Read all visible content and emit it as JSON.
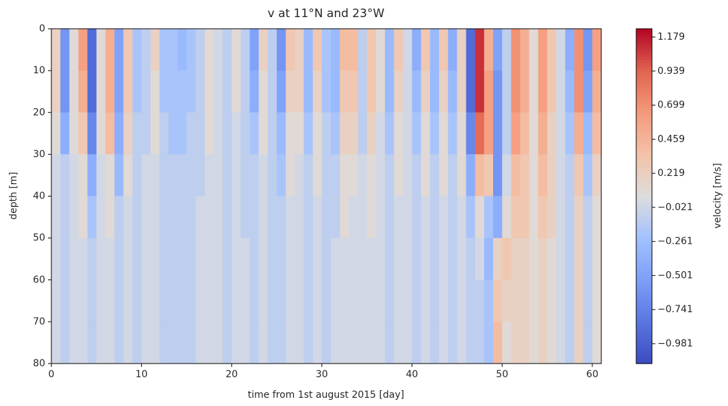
{
  "chart_data": {
    "type": "heatmap",
    "title": "v at 11°N and 23°W",
    "xlabel": "time from 1st august 2015 [day]",
    "ylabel": "depth [m]",
    "colorbar_label": "velocity [m/s]",
    "colormap": "coolwarm",
    "clim": [
      -1.121,
      1.237
    ],
    "cticks": [
      {
        "value": 1.179,
        "label": "1.179"
      },
      {
        "value": 0.939,
        "label": "0.939"
      },
      {
        "value": 0.699,
        "label": "0.699"
      },
      {
        "value": 0.459,
        "label": "0.459"
      },
      {
        "value": 0.219,
        "label": "0.219"
      },
      {
        "value": -0.021,
        "label": "−0.021"
      },
      {
        "value": -0.261,
        "label": "−0.261"
      },
      {
        "value": -0.501,
        "label": "−0.501"
      },
      {
        "value": -0.741,
        "label": "−0.741"
      },
      {
        "value": -0.981,
        "label": "−0.981"
      }
    ],
    "xlim": [
      0,
      61
    ],
    "xticks": [
      0,
      10,
      20,
      30,
      40,
      50,
      60
    ],
    "ylim": [
      80,
      0
    ],
    "yticks": [
      0,
      10,
      20,
      30,
      40,
      50,
      60,
      70,
      80
    ],
    "x_edges": [
      0,
      1,
      2,
      3,
      4,
      5,
      6,
      7,
      8,
      9,
      10,
      11,
      12,
      13,
      14,
      15,
      16,
      17,
      18,
      19,
      20,
      21,
      22,
      23,
      24,
      25,
      26,
      27,
      28,
      29,
      30,
      31,
      32,
      33,
      34,
      35,
      36,
      37,
      38,
      39,
      40,
      41,
      42,
      43,
      44,
      45,
      46,
      47,
      48,
      49,
      50,
      51,
      52,
      53,
      54,
      55,
      56,
      57,
      58,
      59,
      60,
      61
    ],
    "y_edges": [
      0,
      10,
      20,
      30,
      40,
      50,
      60,
      70,
      80
    ],
    "z": [
      [
        0.2,
        -0.6,
        0.1,
        0.6,
        -0.9,
        0.1,
        0.5,
        -0.5,
        0.3,
        -0.2,
        -0.1,
        0.2,
        -0.2,
        -0.2,
        -0.3,
        -0.2,
        -0.1,
        0.1,
        0.0,
        -0.1,
        0.1,
        -0.1,
        -0.5,
        0.2,
        -0.1,
        -0.6,
        0.3,
        0.2,
        -0.3,
        0.3,
        -0.2,
        -0.3,
        0.4,
        0.4,
        -0.1,
        0.3,
        0.1,
        -0.3,
        0.3,
        0.0,
        -0.4,
        0.3,
        -0.3,
        0.3,
        -0.4,
        0.2,
        -0.9,
        1.1,
        0.5,
        -0.5,
        -0.1,
        0.7,
        0.5,
        0.1,
        0.6,
        0.3,
        0.0,
        -0.4,
        0.7,
        -0.6,
        0.6
      ],
      [
        0.2,
        -0.6,
        0.1,
        0.5,
        -0.9,
        0.1,
        0.5,
        -0.5,
        0.3,
        -0.2,
        -0.1,
        0.1,
        -0.2,
        -0.2,
        -0.2,
        -0.2,
        -0.1,
        0.1,
        0.0,
        -0.1,
        0.1,
        -0.1,
        -0.4,
        0.1,
        -0.1,
        -0.5,
        0.2,
        0.2,
        -0.3,
        0.2,
        -0.2,
        -0.3,
        0.3,
        0.3,
        -0.1,
        0.3,
        0.1,
        -0.3,
        0.2,
        0.0,
        -0.3,
        0.2,
        -0.3,
        0.2,
        -0.3,
        0.2,
        -0.9,
        1.1,
        0.6,
        -0.6,
        -0.1,
        0.7,
        0.5,
        0.1,
        0.6,
        0.3,
        0.0,
        -0.3,
        0.7,
        -0.5,
        0.5
      ],
      [
        0.1,
        -0.4,
        0.1,
        0.3,
        -0.7,
        0.1,
        0.4,
        -0.4,
        0.2,
        -0.1,
        -0.1,
        0.1,
        -0.1,
        -0.2,
        -0.2,
        -0.1,
        -0.1,
        0.1,
        0.0,
        -0.1,
        0.0,
        -0.1,
        -0.2,
        0.1,
        -0.1,
        -0.3,
        0.1,
        0.1,
        -0.2,
        0.1,
        -0.1,
        -0.2,
        0.2,
        0.2,
        -0.1,
        0.2,
        0.0,
        -0.2,
        0.1,
        0.0,
        -0.2,
        0.1,
        -0.2,
        0.1,
        -0.2,
        0.1,
        -0.7,
        0.9,
        0.6,
        -0.6,
        -0.1,
        0.6,
        0.4,
        0.1,
        0.5,
        0.2,
        0.0,
        -0.2,
        0.5,
        -0.3,
        0.4
      ],
      [
        0.0,
        -0.1,
        0.0,
        0.1,
        -0.4,
        0.0,
        0.1,
        -0.3,
        0.1,
        -0.1,
        0.0,
        0.0,
        -0.1,
        -0.1,
        -0.1,
        -0.1,
        -0.1,
        0.0,
        0.0,
        -0.1,
        0.0,
        -0.1,
        -0.1,
        0.0,
        -0.1,
        -0.2,
        0.1,
        0.0,
        -0.1,
        0.1,
        -0.1,
        -0.1,
        0.1,
        0.1,
        0.0,
        0.1,
        0.0,
        -0.1,
        0.1,
        0.0,
        -0.1,
        0.1,
        -0.1,
        0.1,
        -0.1,
        0.1,
        -0.4,
        0.4,
        0.3,
        -0.6,
        0.0,
        0.4,
        0.3,
        0.1,
        0.4,
        0.2,
        0.0,
        -0.1,
        0.3,
        -0.2,
        0.2
      ],
      [
        0.0,
        -0.1,
        0.0,
        0.1,
        -0.2,
        0.0,
        0.1,
        -0.1,
        0.0,
        -0.1,
        0.0,
        0.0,
        -0.1,
        -0.1,
        -0.1,
        -0.1,
        0.0,
        0.0,
        0.0,
        -0.1,
        0.0,
        -0.1,
        -0.1,
        0.0,
        -0.1,
        -0.1,
        0.0,
        0.0,
        -0.1,
        0.0,
        -0.1,
        -0.1,
        0.1,
        0.0,
        0.0,
        0.1,
        0.0,
        -0.1,
        0.0,
        0.0,
        -0.1,
        0.0,
        -0.1,
        0.0,
        -0.1,
        0.0,
        -0.2,
        0.1,
        -0.2,
        -0.4,
        0.1,
        0.3,
        0.3,
        0.1,
        0.3,
        0.2,
        0.0,
        -0.1,
        0.2,
        -0.1,
        0.1
      ],
      [
        0.0,
        -0.1,
        0.0,
        0.0,
        -0.1,
        0.0,
        0.0,
        -0.1,
        0.0,
        -0.1,
        0.0,
        0.0,
        -0.1,
        -0.1,
        -0.1,
        -0.1,
        0.0,
        0.0,
        0.0,
        -0.1,
        0.0,
        0.0,
        -0.1,
        0.0,
        -0.1,
        -0.1,
        0.0,
        0.0,
        -0.1,
        0.0,
        -0.1,
        0.0,
        0.0,
        0.0,
        0.0,
        0.0,
        0.0,
        -0.1,
        0.0,
        0.0,
        -0.1,
        0.0,
        -0.1,
        0.0,
        -0.1,
        0.0,
        -0.1,
        0.0,
        -0.3,
        0.2,
        0.3,
        0.2,
        0.2,
        0.1,
        0.2,
        0.1,
        0.0,
        -0.1,
        0.2,
        -0.1,
        0.1
      ],
      [
        0.0,
        -0.1,
        0.0,
        0.0,
        -0.1,
        0.0,
        0.0,
        -0.1,
        0.0,
        -0.1,
        0.0,
        0.0,
        -0.1,
        -0.1,
        -0.1,
        -0.1,
        0.0,
        0.0,
        0.0,
        -0.1,
        0.0,
        0.0,
        -0.1,
        0.0,
        -0.1,
        -0.1,
        0.0,
        0.0,
        -0.1,
        0.0,
        -0.1,
        0.0,
        0.0,
        0.0,
        0.0,
        0.0,
        0.0,
        -0.1,
        0.0,
        0.0,
        -0.1,
        0.0,
        -0.1,
        0.0,
        -0.1,
        0.0,
        -0.1,
        -0.1,
        -0.2,
        0.3,
        0.2,
        0.2,
        0.2,
        0.1,
        0.2,
        0.1,
        0.0,
        -0.1,
        0.2,
        -0.1,
        0.1
      ],
      [
        0.0,
        -0.1,
        0.0,
        0.0,
        -0.1,
        0.0,
        0.0,
        -0.1,
        0.0,
        -0.1,
        0.0,
        0.0,
        -0.1,
        -0.1,
        -0.1,
        -0.1,
        0.0,
        0.0,
        0.0,
        -0.1,
        0.0,
        0.0,
        -0.1,
        0.0,
        -0.1,
        -0.1,
        0.0,
        0.0,
        -0.1,
        0.0,
        -0.1,
        0.0,
        0.0,
        0.0,
        0.0,
        0.0,
        0.0,
        -0.1,
        0.0,
        0.0,
        -0.1,
        0.0,
        -0.1,
        0.0,
        -0.1,
        0.0,
        -0.1,
        -0.1,
        -0.2,
        0.4,
        0.1,
        0.2,
        0.2,
        0.1,
        0.2,
        0.1,
        0.0,
        -0.1,
        0.2,
        -0.1,
        0.1
      ]
    ]
  }
}
